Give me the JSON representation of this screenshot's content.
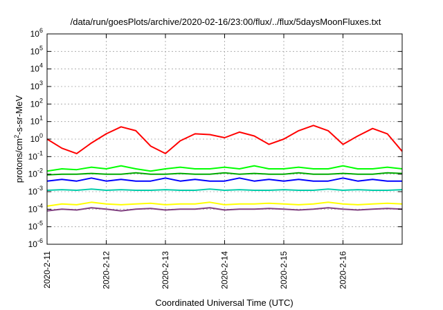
{
  "chart_data": {
    "type": "line",
    "title": "/data/run/goesPlots/archive/2020-02-16/23:00/flux/../flux/5daysMoonFluxes.txt",
    "xlabel": "Coordinated Universal Time (UTC)",
    "ylabel": {
      "main": "protons/cm",
      "sup": "2",
      "rest": "-s-sr-MeV"
    },
    "yscale": "log",
    "ylim": [
      1e-06,
      1000000.0
    ],
    "y_ticks": [
      {
        "base": "10",
        "exp": "-6",
        "value": 1e-06
      },
      {
        "base": "10",
        "exp": "-5",
        "value": 1e-05
      },
      {
        "base": "10",
        "exp": "-4",
        "value": 0.0001
      },
      {
        "base": "10",
        "exp": "-3",
        "value": 0.001
      },
      {
        "base": "10",
        "exp": "-2",
        "value": 0.01
      },
      {
        "base": "10",
        "exp": "-1",
        "value": 0.1
      },
      {
        "base": "10",
        "exp": "0",
        "value": 1
      },
      {
        "base": "10",
        "exp": "1",
        "value": 10
      },
      {
        "base": "10",
        "exp": "2",
        "value": 100
      },
      {
        "base": "10",
        "exp": "3",
        "value": 1000
      },
      {
        "base": "10",
        "exp": "4",
        "value": 10000
      },
      {
        "base": "10",
        "exp": "5",
        "value": 100000
      },
      {
        "base": "10",
        "exp": "6",
        "value": 1000000
      }
    ],
    "xlim": [
      "2020-02-11",
      "2020-02-17"
    ],
    "x_ticks": [
      "2020-2-11",
      "2020-2-12",
      "2020-2-13",
      "2020-2-14",
      "2020-2-15",
      "2020-2-16"
    ],
    "grid": true,
    "x": [
      "2020-02-11 00:00",
      "2020-02-11 06:00",
      "2020-02-11 12:00",
      "2020-02-11 18:00",
      "2020-02-12 00:00",
      "2020-02-12 06:00",
      "2020-02-12 12:00",
      "2020-02-12 18:00",
      "2020-02-13 00:00",
      "2020-02-13 06:00",
      "2020-02-13 12:00",
      "2020-02-13 18:00",
      "2020-02-14 00:00",
      "2020-02-14 06:00",
      "2020-02-14 12:00",
      "2020-02-14 18:00",
      "2020-02-15 00:00",
      "2020-02-15 06:00",
      "2020-02-15 12:00",
      "2020-02-15 18:00",
      "2020-02-16 00:00",
      "2020-02-16 06:00",
      "2020-02-16 12:00",
      "2020-02-16 18:00",
      "2020-02-17 00:00"
    ],
    "series": [
      {
        "color": "#ff0000",
        "values": [
          1.0,
          0.3,
          0.15,
          0.6,
          2.0,
          5.0,
          3.0,
          0.4,
          0.15,
          0.8,
          2.0,
          1.8,
          1.2,
          2.5,
          1.5,
          0.5,
          1.0,
          3.0,
          6.0,
          3.0,
          0.5,
          1.5,
          4.0,
          2.0,
          0.2
        ]
      },
      {
        "color": "#00ff00",
        "values": [
          0.015,
          0.02,
          0.018,
          0.025,
          0.02,
          0.03,
          0.02,
          0.015,
          0.02,
          0.025,
          0.02,
          0.02,
          0.025,
          0.02,
          0.03,
          0.02,
          0.02,
          0.025,
          0.02,
          0.02,
          0.03,
          0.02,
          0.02,
          0.025,
          0.02
        ]
      },
      {
        "color": "#00aa00",
        "values": [
          0.009,
          0.01,
          0.01,
          0.011,
          0.01,
          0.01,
          0.012,
          0.01,
          0.01,
          0.011,
          0.01,
          0.01,
          0.012,
          0.01,
          0.011,
          0.01,
          0.01,
          0.012,
          0.01,
          0.01,
          0.011,
          0.01,
          0.01,
          0.012,
          0.011
        ]
      },
      {
        "color": "#0000ff",
        "values": [
          0.004,
          0.005,
          0.004,
          0.006,
          0.004,
          0.005,
          0.004,
          0.004,
          0.006,
          0.004,
          0.005,
          0.004,
          0.004,
          0.006,
          0.004,
          0.005,
          0.004,
          0.005,
          0.004,
          0.004,
          0.006,
          0.004,
          0.005,
          0.004,
          0.004
        ]
      },
      {
        "color": "#00ccaa",
        "values": [
          0.0012,
          0.0013,
          0.0012,
          0.0014,
          0.0012,
          0.0013,
          0.0012,
          0.0012,
          0.0013,
          0.0012,
          0.0012,
          0.0014,
          0.0012,
          0.0013,
          0.0012,
          0.0012,
          0.0013,
          0.0012,
          0.0012,
          0.0014,
          0.0012,
          0.0013,
          0.0012,
          0.0012,
          0.0013
        ]
      },
      {
        "color": "#ffff00",
        "values": [
          0.00015,
          0.0002,
          0.00018,
          0.00025,
          0.0002,
          0.00018,
          0.0002,
          0.00022,
          0.00018,
          0.0002,
          0.0002,
          0.00025,
          0.00018,
          0.0002,
          0.0002,
          0.00022,
          0.0002,
          0.00018,
          0.0002,
          0.00025,
          0.0002,
          0.00018,
          0.0002,
          0.00022,
          0.0002
        ]
      },
      {
        "color": "#7f3f7f",
        "values": [
          8e-05,
          0.0001,
          9e-05,
          0.00012,
          0.0001,
          8e-05,
          0.0001,
          0.00011,
          9e-05,
          0.0001,
          0.0001,
          0.00012,
          9e-05,
          0.0001,
          0.0001,
          0.00011,
          0.0001,
          9e-05,
          0.0001,
          0.00012,
          0.0001,
          9e-05,
          0.0001,
          0.00011,
          0.0001
        ]
      }
    ]
  }
}
